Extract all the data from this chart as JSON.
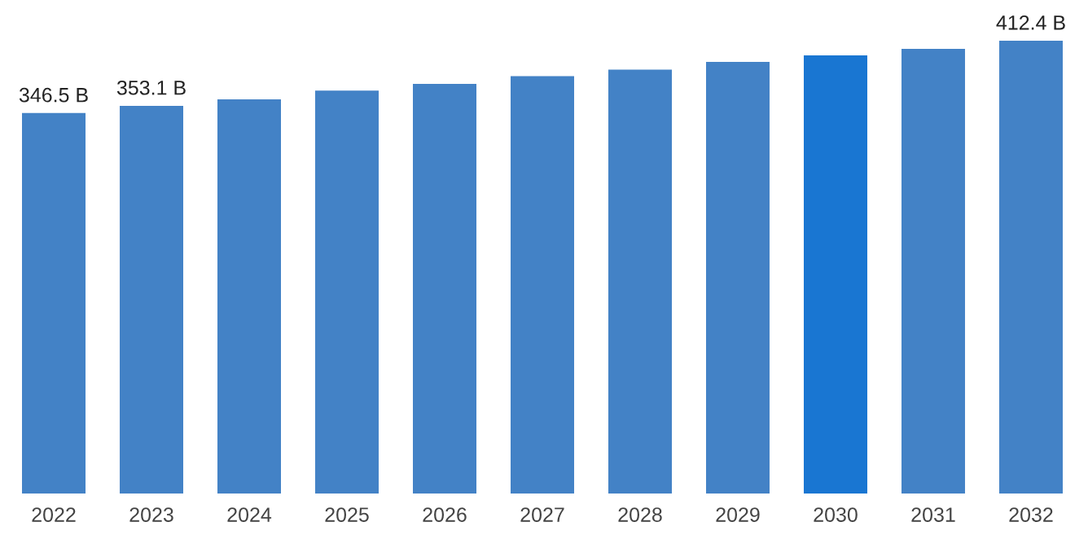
{
  "chart_data": {
    "type": "bar",
    "categories": [
      "2022",
      "2023",
      "2024",
      "2025",
      "2026",
      "2027",
      "2028",
      "2029",
      "2030",
      "2031",
      "2032"
    ],
    "values": [
      346.5,
      353.1,
      359,
      367,
      373,
      380,
      386,
      393,
      399,
      405,
      412.4
    ],
    "colors": [
      "#4382c6",
      "#4382c6",
      "#4382c6",
      "#4382c6",
      "#4382c6",
      "#4382c6",
      "#4382c6",
      "#4382c6",
      "#1976d2",
      "#4382c6",
      "#4382c6"
    ],
    "value_labels": [
      "346.5 B",
      "353.1 B",
      null,
      null,
      null,
      null,
      null,
      null,
      null,
      null,
      "412.4 B"
    ],
    "grid": false,
    "legend": false
  }
}
